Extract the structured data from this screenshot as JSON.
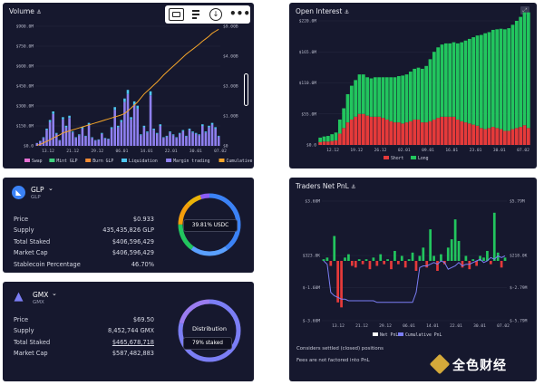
{
  "volume": {
    "title": "Volume",
    "y_ticks": [
      "$0.0",
      "$150.0M",
      "$300.0M",
      "$450.0M",
      "$600.0M",
      "$750.0M",
      "$900.0M"
    ],
    "y2_ticks": [
      "$0",
      "$1.00B",
      "$3.00B",
      "$4.00B",
      "$9.00B"
    ],
    "x_ticks": [
      "13.12",
      "21.12",
      "29.12",
      "06.01",
      "14.01",
      "22.01",
      "30.01",
      "07.02"
    ],
    "legend": [
      {
        "label": "Swap",
        "color": "#e56fd3"
      },
      {
        "label": "Mint GLP",
        "color": "#3fd07d"
      },
      {
        "label": "Burn GLP",
        "color": "#f08a34"
      },
      {
        "label": "Liquidation",
        "color": "#4ec6f0"
      },
      {
        "label": "Margin trading",
        "color": "#8f80f0"
      },
      {
        "label": "Cumulative",
        "color": "#f5a52a"
      }
    ],
    "toolbar": [
      "comment-icon",
      "bookmark-icon",
      "download-icon",
      "more-icon"
    ]
  },
  "chart_data": [
    {
      "type": "bar",
      "title": "Volume",
      "xlabel": "",
      "ylabel": "",
      "x_ticks": [
        "13.12",
        "21.12",
        "29.12",
        "06.01",
        "14.01",
        "22.01",
        "30.01",
        "07.02"
      ],
      "ylim": [
        0,
        900
      ],
      "unit": "$M",
      "series": [
        {
          "name": "Margin trading",
          "values": [
            20,
            35,
            60,
            120,
            180,
            240,
            90,
            40,
            200,
            140,
            210,
            100,
            60,
            80,
            130,
            70,
            160,
            60,
            40,
            45,
            90,
            55,
            50,
            130,
            270,
            140,
            180,
            330,
            390,
            200,
            310,
            280,
            80,
            140,
            100,
            380,
            120,
            90,
            150,
            60,
            70,
            100,
            80,
            60,
            90,
            110,
            70,
            120,
            100,
            90,
            80,
            150,
            100,
            140,
            160,
            130,
            70
          ]
        },
        {
          "name": "Cumulative",
          "values": [
            10,
            30,
            60,
            90,
            120,
            160,
            190,
            220,
            260,
            280,
            300,
            320,
            340,
            360,
            380,
            400,
            420,
            440,
            460,
            480,
            500,
            520,
            540,
            560,
            580,
            600,
            620,
            650,
            700,
            760,
            820,
            880,
            960,
            1040,
            1100,
            1160,
            1220,
            1280,
            1350,
            1420,
            1480,
            1540,
            1600,
            1660,
            1720,
            1780,
            1840,
            1890,
            1940,
            1990,
            2040,
            2100,
            2150,
            2200,
            2260,
            2300,
            2340
          ],
          "axis": "right"
        }
      ]
    },
    {
      "type": "bar",
      "title": "Open Interest",
      "x_ticks": [
        "12.12",
        "19.12",
        "26.12",
        "02.01",
        "09.01",
        "16.01",
        "23.01",
        "30.01",
        "07.02"
      ],
      "ylim": [
        0,
        220
      ],
      "unit": "$M",
      "series": [
        {
          "name": "Short",
          "values": [
            5,
            6,
            6,
            7,
            8,
            20,
            30,
            40,
            45,
            50,
            55,
            55,
            52,
            50,
            50,
            50,
            48,
            45,
            42,
            40,
            40,
            38,
            40,
            42,
            45,
            45,
            40,
            40,
            42,
            45,
            48,
            50,
            50,
            50,
            50,
            45,
            42,
            40,
            38,
            36,
            34,
            30,
            28,
            30,
            32,
            30,
            28,
            25,
            25,
            28,
            30,
            32,
            35,
            30
          ]
        },
        {
          "name": "Long",
          "values": [
            8,
            9,
            10,
            12,
            14,
            25,
            35,
            50,
            60,
            65,
            70,
            70,
            68,
            68,
            70,
            70,
            72,
            75,
            78,
            80,
            82,
            85,
            85,
            88,
            90,
            92,
            95,
            100,
            110,
            120,
            125,
            128,
            130,
            130,
            132,
            135,
            140,
            145,
            150,
            155,
            160,
            165,
            170,
            170,
            172,
            175,
            178,
            180,
            182,
            185,
            190,
            195,
            200,
            205
          ]
        }
      ]
    },
    {
      "type": "bar",
      "title": "Traders Net PnL",
      "x_ticks": [
        "13.12",
        "21.12",
        "29.12",
        "06.01",
        "14.01",
        "22.01",
        "30.01",
        "07.02"
      ],
      "ylim": [
        -3.6,
        3.6
      ],
      "unit": "$M",
      "series": [
        {
          "name": "Net PnL",
          "values": [
            0.1,
            0.2,
            -0.3,
            1.5,
            -2.5,
            -2.8,
            0.2,
            0.4,
            -0.3,
            -0.4,
            0.1,
            -0.2,
            0.1,
            -0.5,
            0.2,
            -0.3,
            0.4,
            -0.2,
            0.1,
            -0.5,
            0.6,
            -0.2,
            0.3,
            -0.4,
            0.1,
            0.5,
            -0.6,
            0.3,
            0.8,
            -0.4,
            1.9,
            0.3,
            -0.6,
            0.4,
            -0.2,
            0.8,
            1.3,
            2.5,
            1.2,
            -0.4,
            0.3,
            -0.5,
            0.1,
            -0.3,
            0.3,
            0.2,
            0.6,
            -0.2,
            2.9,
            0.5,
            -0.4,
            0.2
          ]
        },
        {
          "name": "Cumulative PnL",
          "values": [
            0.0,
            -0.2,
            -1.9,
            -2.1,
            -2.2,
            -2.3,
            -2.3,
            -2.4,
            -2.4,
            -2.4,
            -2.4,
            -2.4,
            -2.4,
            -2.4,
            -2.4,
            -2.5,
            -2.5,
            -2.5,
            -2.5,
            -2.5,
            -2.5,
            -2.5,
            -2.5,
            -2.5,
            -2.5,
            -2.5,
            -1.9,
            -0.4,
            -0.3,
            -0.3,
            -0.2,
            -0.1,
            -0.2,
            0.0,
            -0.1,
            -0.5,
            -0.4,
            -0.3,
            -0.1,
            -0.3,
            -0.2,
            -0.2,
            -0.1,
            0.0,
            0.1,
            -0.1,
            0.0,
            0.2,
            0.1,
            0.3,
            0.2,
            0.3
          ],
          "axis": "right"
        }
      ]
    }
  ],
  "open_interest": {
    "title": "Open Interest",
    "y_ticks": [
      "$0.0",
      "$55.0M",
      "$110.0M",
      "$165.0M",
      "$220.0M"
    ],
    "x_ticks": [
      "12.12",
      "19.12",
      "26.12",
      "02.01",
      "09.01",
      "16.01",
      "23.01",
      "30.01",
      "07.02"
    ],
    "legend": [
      {
        "label": "Short",
        "color": "#e53a3a"
      },
      {
        "label": "Long",
        "color": "#22c55e"
      }
    ]
  },
  "pnl": {
    "title": "Traders Net PnL",
    "y_ticks": [
      "$3.60M",
      "$323.0K",
      "$-1.60M",
      "$-3.60M"
    ],
    "y2_ticks": [
      "$5.79M",
      "$218.0K",
      "$-2.79M",
      "$-5.79M"
    ],
    "x_ticks": [
      "13.12",
      "21.12",
      "29.12",
      "06.01",
      "14.01",
      "22.01",
      "30.01",
      "07.02"
    ],
    "legend": [
      {
        "label": "Net PnL",
        "color": "#ffffff"
      },
      {
        "label": "Cumulative PnL",
        "color": "#7b7ef5"
      }
    ],
    "note1": "Considers settled (closed) positions",
    "note2": "Fees are not factored into PnL"
  },
  "glp": {
    "name": "GLP",
    "sub": "GLP",
    "rows": [
      {
        "k": "Price",
        "v": "$0.933"
      },
      {
        "k": "Supply",
        "v": "435,435,826 GLP"
      },
      {
        "k": "Total Staked",
        "v": "$406,596,429"
      },
      {
        "k": "Market Cap",
        "v": "$406,596,429"
      },
      {
        "k": "Stablecoin Percentage",
        "v": "46.70%"
      }
    ],
    "donut_label": "39.81% USDC"
  },
  "gmx": {
    "name": "GMX",
    "sub": "GMX",
    "rows": [
      {
        "k": "Price",
        "v": "$69.50"
      },
      {
        "k": "Supply",
        "v": "8,452,744 GMX"
      },
      {
        "k": "Total Staked",
        "v": "$465,678,718"
      },
      {
        "k": "Market Cap",
        "v": "$587,482,883"
      }
    ],
    "donut_title": "Distribution",
    "donut_label": "79% staked"
  },
  "watermark": "全色财经"
}
